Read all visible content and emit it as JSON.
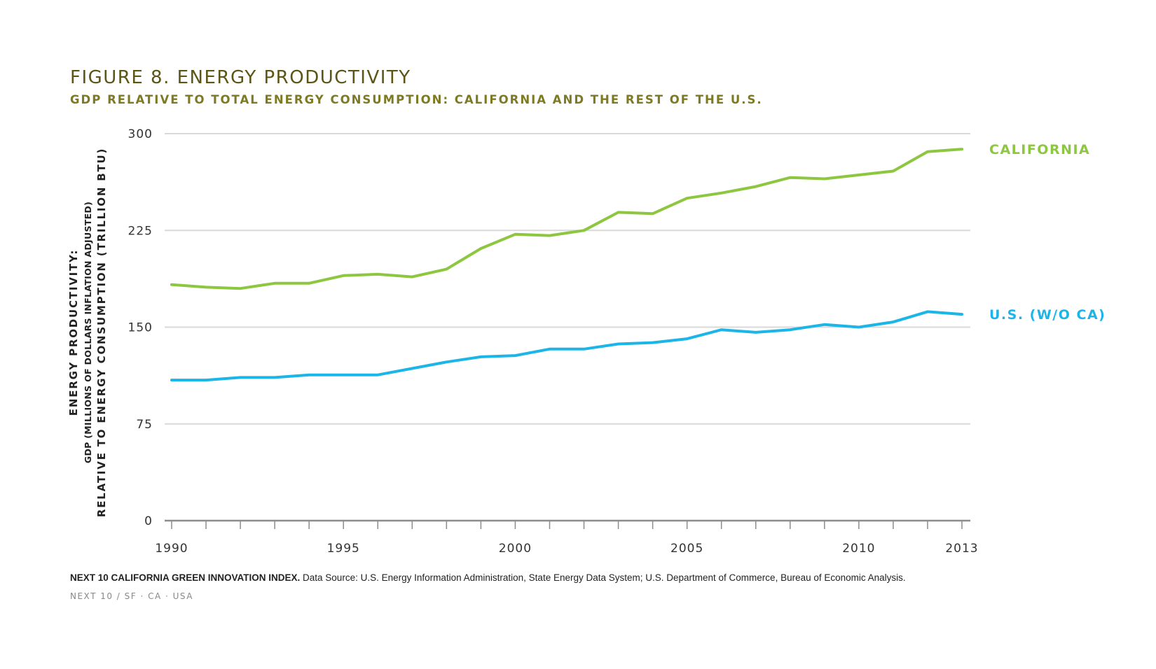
{
  "header": {
    "title": "FIGURE 8. ENERGY PRODUCTIVITY",
    "subtitle": "GDP RELATIVE TO TOTAL ENERGY CONSUMPTION: CALIFORNIA AND THE REST OF THE U.S."
  },
  "footer": {
    "source_bold": "NEXT 10 CALIFORNIA GREEN INNOVATION INDEX.",
    "source_text": " Data Source: U.S. Energy Information Administration, State Energy Data System; U.S. Department of Commerce, Bureau of Economic Analysis.",
    "org": "NEXT 10  /  SF · CA · USA"
  },
  "chart_data": {
    "type": "line",
    "ylabel": [
      "ENERGY PRODUCTIVITY:",
      "GDP (MILLIONS OF DOLLARS INFLATION ADJUSTED)",
      "RELATIVE TO ENERGY CONSUMPTION (TRILLION BTU)"
    ],
    "xlabel": "",
    "x": [
      1990,
      1991,
      1992,
      1993,
      1994,
      1995,
      1996,
      1997,
      1998,
      1999,
      2000,
      2001,
      2002,
      2003,
      2004,
      2005,
      2006,
      2007,
      2008,
      2009,
      2010,
      2011,
      2012,
      2013
    ],
    "x_tick_labels": [
      "1990",
      "1995",
      "2000",
      "2005",
      "2010",
      "2013"
    ],
    "y_tick_labels": [
      "0",
      "75",
      "150",
      "225",
      "300"
    ],
    "ylim": [
      0,
      300
    ],
    "grid": true,
    "series": [
      {
        "name": "CALIFORNIA",
        "color": "#8dc63f",
        "values": [
          183,
          181,
          180,
          184,
          184,
          190,
          191,
          189,
          195,
          211,
          222,
          221,
          225,
          239,
          238,
          250,
          254,
          259,
          266,
          265,
          268,
          271,
          286,
          288
        ]
      },
      {
        "name": "U.S. (W/O CA)",
        "color": "#1cb5e8",
        "values": [
          109,
          109,
          111,
          111,
          113,
          113,
          113,
          118,
          123,
          127,
          128,
          133,
          133,
          137,
          138,
          141,
          148,
          146,
          148,
          152,
          150,
          154,
          162,
          160
        ]
      }
    ],
    "colors": {
      "grid": "#d9d9d9",
      "axis": "#8c8c8c",
      "tick_text": "#333333"
    }
  }
}
